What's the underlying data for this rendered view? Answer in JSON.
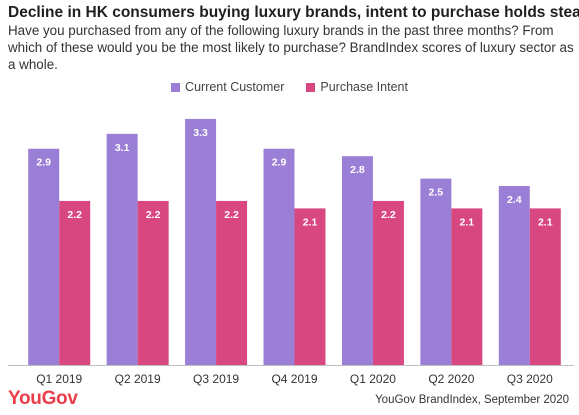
{
  "title": "Decline in HK consumers buying luxury brands, intent to purchase holds steady",
  "subtitle": "Have you purchased from any of the following luxury brands in the past three months? From which of these would you be the most likely to purchase? BrandIndex scores of luxury sector as a whole.",
  "logo": "YouGov",
  "source": "YouGov BrandIndex, September 2020",
  "colors": {
    "current": "#9b7fd6",
    "intent": "#d84780",
    "axis": "#bfbfbf"
  },
  "chart_data": {
    "type": "bar",
    "categories": [
      "Q1 2019",
      "Q2 2019",
      "Q3 2019",
      "Q4 2019",
      "Q1 2020",
      "Q2 2020",
      "Q3 2020"
    ],
    "series": [
      {
        "name": "Current Customer",
        "values": [
          2.9,
          3.1,
          3.3,
          2.9,
          2.8,
          2.5,
          2.4
        ]
      },
      {
        "name": "Purchase Intent",
        "values": [
          2.2,
          2.2,
          2.2,
          2.1,
          2.2,
          2.1,
          2.1
        ]
      }
    ],
    "ylim": [
      0,
      3.5
    ],
    "grid": false,
    "legend": "top-center",
    "data_labels": true
  }
}
